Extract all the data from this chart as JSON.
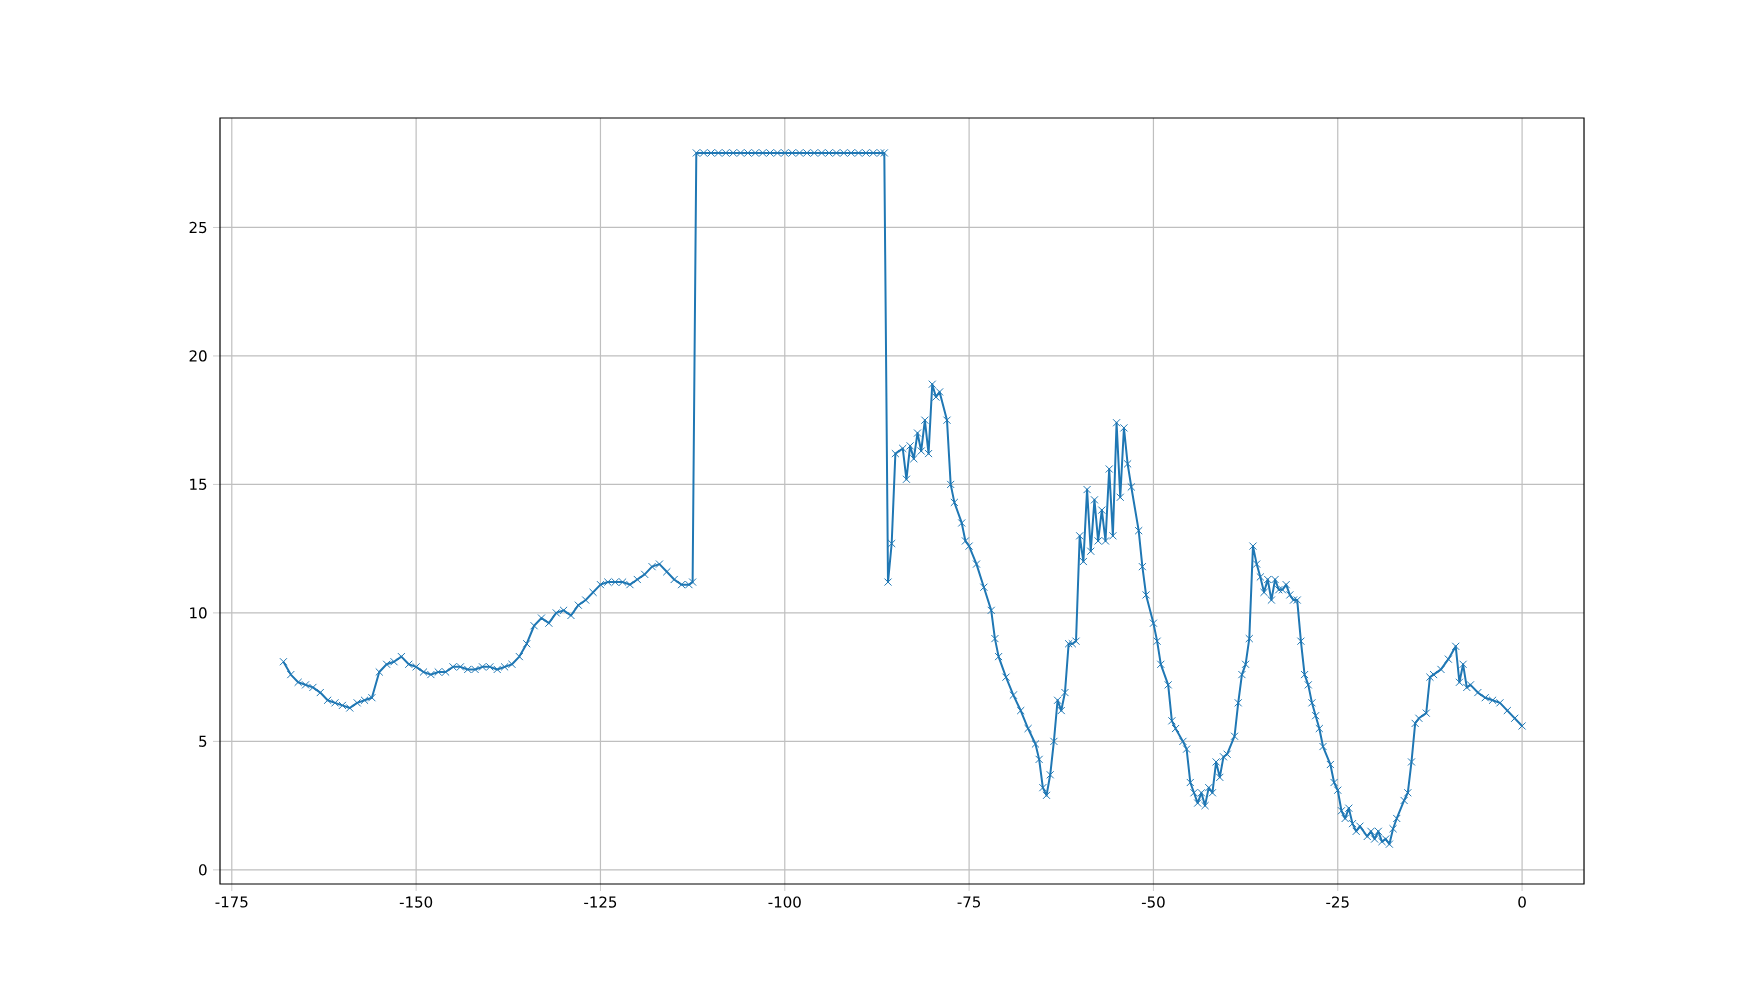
{
  "chart_data": {
    "type": "line",
    "color": "#1f77b4",
    "marker": "cross",
    "line_style": "solid",
    "grid": true,
    "xlim": [
      -176.6,
      8.4
    ],
    "ylim": [
      -0.55,
      29.26
    ],
    "xticks": [
      -175,
      -150,
      -125,
      -100,
      -75,
      -50,
      -25,
      0
    ],
    "yticks": [
      0,
      5,
      10,
      15,
      20,
      25
    ],
    "x": [
      -168,
      -167,
      -166,
      -165,
      -164,
      -163,
      -162,
      -161,
      -160,
      -159,
      -158,
      -157,
      -156,
      -155,
      -154,
      -153,
      -152,
      -151,
      -150,
      -149,
      -148,
      -147,
      -146,
      -145,
      -144,
      -143,
      -142,
      -141,
      -140,
      -139,
      -138,
      -137,
      -136,
      -135,
      -134,
      -133,
      -132,
      -131,
      -130,
      -129,
      -128,
      -127,
      -126,
      -125,
      -124,
      -123,
      -122,
      -121,
      -120,
      -119,
      -118,
      -117,
      -116,
      -115,
      -114,
      -113,
      -112.5,
      -112,
      -111,
      -110,
      -109,
      -108,
      -107,
      -106,
      -105,
      -104,
      -103,
      -102,
      -101,
      -100,
      -99,
      -98,
      -97,
      -96,
      -95,
      -94,
      -93,
      -92,
      -91,
      -90,
      -89,
      -88,
      -87,
      -86.5,
      -86,
      -85.5,
      -85,
      -84,
      -83.5,
      -83,
      -82.5,
      -82,
      -81.5,
      -81,
      -80.5,
      -80,
      -79.5,
      -79,
      -78,
      -77.5,
      -77,
      -76,
      -75.5,
      -75,
      -74,
      -73,
      -72,
      -71.5,
      -71,
      -70,
      -69,
      -68,
      -67,
      -66,
      -65.5,
      -65,
      -64.5,
      -64,
      -63.5,
      -63,
      -62.5,
      -62,
      -61.5,
      -61,
      -60.5,
      -60,
      -59.5,
      -59,
      -58.5,
      -58,
      -57.5,
      -57,
      -56.5,
      -56,
      -55.5,
      -55,
      -54.5,
      -54,
      -53.5,
      -53,
      -52,
      -51.5,
      -51,
      -50,
      -49.5,
      -49,
      -48,
      -47.5,
      -47,
      -46,
      -45.5,
      -45,
      -44.5,
      -44,
      -43.5,
      -43,
      -42.5,
      -42,
      -41.5,
      -41,
      -40.5,
      -40,
      -39,
      -38.5,
      -38,
      -37.5,
      -37,
      -36.5,
      -36,
      -35.5,
      -35,
      -34.5,
      -34,
      -33.5,
      -33,
      -32.5,
      -32,
      -31.5,
      -31,
      -30.5,
      -30,
      -29.5,
      -29,
      -28.5,
      -28,
      -27.5,
      -27,
      -26,
      -25.5,
      -25,
      -24.5,
      -24,
      -23.5,
      -23,
      -22.5,
      -22,
      -21,
      -20.5,
      -20,
      -19.5,
      -19,
      -18.5,
      -18,
      -17.5,
      -17,
      -16,
      -15.5,
      -15,
      -14.5,
      -14,
      -13,
      -12.5,
      -12,
      -11,
      -10,
      -9,
      -8.5,
      -8,
      -7.5,
      -7,
      -6,
      -5,
      -4,
      -3,
      -2,
      -1,
      0
    ],
    "values": [
      8.1,
      7.6,
      7.3,
      7.2,
      7.1,
      6.9,
      6.6,
      6.5,
      6.4,
      6.3,
      6.5,
      6.6,
      6.7,
      7.7,
      8.0,
      8.1,
      8.3,
      8.0,
      7.9,
      7.7,
      7.6,
      7.7,
      7.7,
      7.9,
      7.9,
      7.8,
      7.8,
      7.9,
      7.9,
      7.8,
      7.9,
      8.0,
      8.3,
      8.8,
      9.5,
      9.8,
      9.6,
      10.0,
      10.1,
      9.9,
      10.3,
      10.5,
      10.8,
      11.1,
      11.2,
      11.2,
      11.2,
      11.1,
      11.3,
      11.5,
      11.8,
      11.9,
      11.6,
      11.3,
      11.1,
      11.1,
      11.2,
      27.9,
      27.9,
      27.9,
      27.9,
      27.9,
      27.9,
      27.9,
      27.9,
      27.9,
      27.9,
      27.9,
      27.9,
      27.9,
      27.9,
      27.9,
      27.9,
      27.9,
      27.9,
      27.9,
      27.9,
      27.9,
      27.9,
      27.9,
      27.9,
      27.9,
      27.9,
      27.9,
      11.2,
      12.7,
      16.2,
      16.4,
      15.2,
      16.5,
      16.0,
      17.0,
      16.3,
      17.5,
      16.2,
      18.9,
      18.4,
      18.6,
      17.5,
      15.0,
      14.3,
      13.5,
      12.8,
      12.6,
      11.9,
      11.0,
      10.1,
      9.0,
      8.3,
      7.5,
      6.8,
      6.2,
      5.5,
      4.9,
      4.3,
      3.2,
      2.9,
      3.7,
      5.0,
      6.6,
      6.2,
      6.9,
      8.8,
      8.8,
      8.9,
      13.0,
      12.0,
      14.8,
      12.4,
      14.4,
      12.8,
      14.0,
      12.8,
      15.6,
      13.0,
      17.4,
      14.5,
      17.2,
      15.8,
      14.9,
      13.2,
      11.8,
      10.7,
      9.6,
      8.9,
      8.0,
      7.2,
      5.8,
      5.5,
      5.0,
      4.7,
      3.4,
      3.0,
      2.6,
      3.0,
      2.5,
      3.2,
      3.0,
      4.2,
      3.6,
      4.4,
      4.5,
      5.2,
      6.5,
      7.6,
      8.0,
      9.0,
      12.6,
      11.9,
      11.4,
      10.8,
      11.3,
      10.5,
      11.3,
      10.9,
      10.9,
      11.1,
      10.7,
      10.5,
      10.5,
      8.9,
      7.6,
      7.2,
      6.5,
      6.0,
      5.5,
      4.8,
      4.1,
      3.4,
      3.1,
      2.3,
      2.0,
      2.4,
      1.8,
      1.5,
      1.7,
      1.3,
      1.5,
      1.2,
      1.5,
      1.1,
      1.2,
      1.0,
      1.6,
      2.0,
      2.7,
      3.0,
      4.2,
      5.7,
      5.9,
      6.1,
      7.5,
      7.6,
      7.8,
      8.2,
      8.7,
      7.3,
      8.0,
      7.1,
      7.2,
      6.9,
      6.7,
      6.6,
      6.5,
      6.2,
      5.9,
      5.6
    ]
  }
}
